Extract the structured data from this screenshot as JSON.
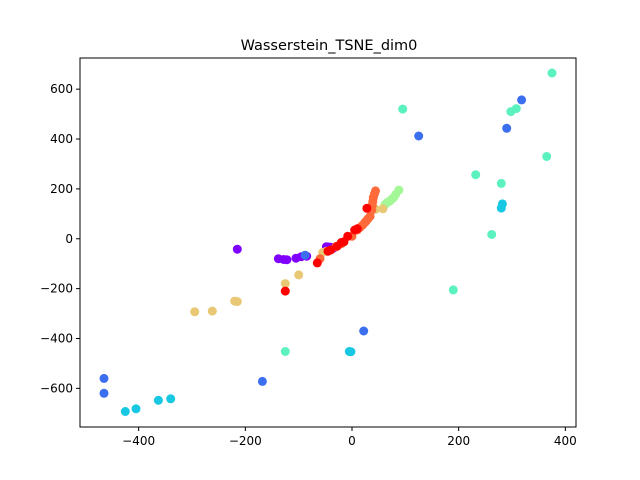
{
  "chart_data": {
    "type": "scatter",
    "title": "Wasserstein_TSNE_dim0",
    "xlabel": "",
    "ylabel": "",
    "xlim": [
      -510,
      420
    ],
    "ylim": [
      -755,
      725
    ],
    "xticks": [
      -400,
      -200,
      0,
      200,
      400
    ],
    "yticks": [
      -600,
      -400,
      -200,
      0,
      200,
      400,
      600
    ],
    "grid": false,
    "legend": "none",
    "groups": [
      {
        "color": "#8000ff",
        "points": [
          [
            -215,
            -42
          ],
          [
            -138,
            -80
          ],
          [
            -128,
            -83
          ],
          [
            -122,
            -84
          ],
          [
            -105,
            -78
          ],
          [
            -95,
            -72
          ],
          [
            -85,
            -70
          ],
          [
            -48,
            -32
          ],
          [
            -44,
            -33
          ],
          [
            -40,
            -34
          ],
          [
            -35,
            -38
          ]
        ]
      },
      {
        "color": "#3c6ef0",
        "points": [
          [
            -465,
            -560
          ],
          [
            -465,
            -620
          ],
          [
            -168,
            -572
          ],
          [
            -88,
            -66
          ],
          [
            22,
            -370
          ],
          [
            125,
            412
          ],
          [
            290,
            443
          ],
          [
            318,
            557
          ]
        ]
      },
      {
        "color": "#18c8e3",
        "points": [
          [
            -425,
            -693
          ],
          [
            -405,
            -682
          ],
          [
            -363,
            -648
          ],
          [
            -340,
            -642
          ],
          [
            -5,
            -452
          ],
          [
            -2,
            -453
          ],
          [
            280,
            123
          ],
          [
            282,
            140
          ]
        ]
      },
      {
        "color": "#5cf2c0",
        "points": [
          [
            -125,
            -452
          ],
          [
            95,
            520
          ],
          [
            190,
            -205
          ],
          [
            232,
            257
          ],
          [
            262,
            17
          ],
          [
            280,
            222
          ],
          [
            298,
            510
          ],
          [
            308,
            522
          ],
          [
            365,
            330
          ],
          [
            375,
            665
          ]
        ]
      },
      {
        "color": "#a3f797",
        "points": [
          [
            62,
            138
          ],
          [
            66,
            145
          ],
          [
            70,
            150
          ],
          [
            74,
            158
          ],
          [
            78,
            165
          ],
          [
            82,
            178
          ],
          [
            88,
            195
          ]
        ]
      },
      {
        "color": "#e8c874",
        "points": [
          [
            -295,
            -293
          ],
          [
            -262,
            -290
          ],
          [
            -220,
            -250
          ],
          [
            -215,
            -252
          ],
          [
            -125,
            -180
          ],
          [
            -100,
            -145
          ],
          [
            -55,
            -55
          ],
          [
            -48,
            -50
          ],
          [
            44,
            118
          ],
          [
            58,
            120
          ]
        ]
      },
      {
        "color": "#ff6a3a",
        "points": [
          [
            -60,
            -80
          ],
          [
            -30,
            -32
          ],
          [
            -20,
            -20
          ],
          [
            0,
            10
          ],
          [
            10,
            35
          ],
          [
            15,
            45
          ],
          [
            20,
            55
          ],
          [
            24,
            65
          ],
          [
            27,
            72
          ],
          [
            30,
            80
          ],
          [
            34,
            90
          ],
          [
            37,
            115
          ],
          [
            38,
            135
          ],
          [
            39,
            150
          ],
          [
            40,
            165
          ],
          [
            42,
            180
          ],
          [
            44,
            192
          ]
        ]
      },
      {
        "color": "#ff0000",
        "points": [
          [
            -125,
            -210
          ],
          [
            -65,
            -97
          ],
          [
            -45,
            -50
          ],
          [
            -40,
            -45
          ],
          [
            -28,
            -30
          ],
          [
            -20,
            -15
          ],
          [
            -15,
            -12
          ],
          [
            -8,
            10
          ],
          [
            5,
            35
          ],
          [
            10,
            40
          ],
          [
            28,
            122
          ]
        ]
      }
    ]
  }
}
